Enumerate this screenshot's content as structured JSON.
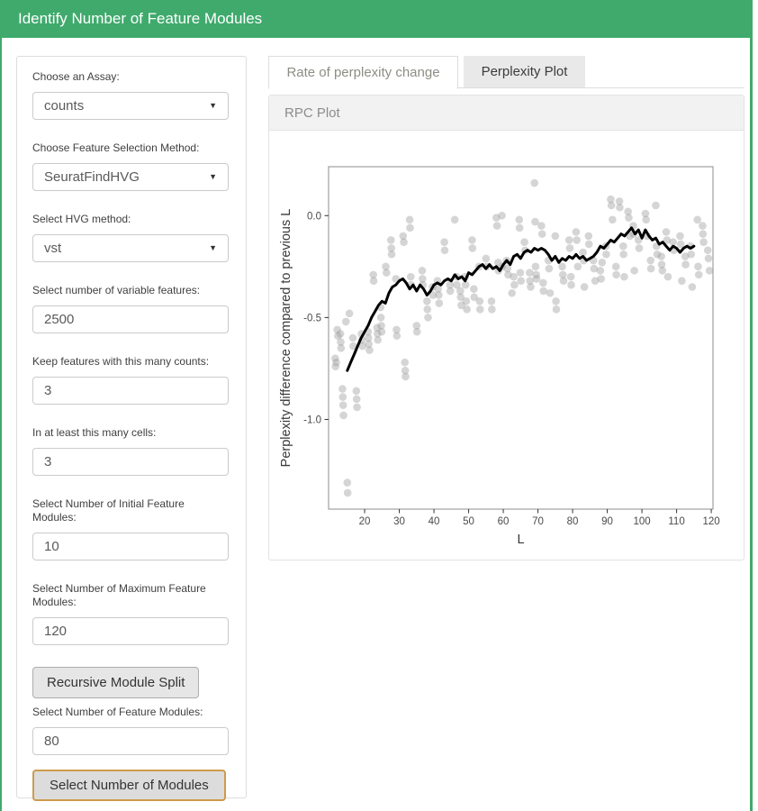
{
  "header": {
    "title": "Identify Number of Feature Modules"
  },
  "colors": {
    "accent_green": "#3faa6c",
    "focused_button_border": "#cd9b4c",
    "inactive_tab_bg": "#e9e9e9",
    "panel_heading_bg": "#f2f2f2",
    "scatter_point": "#9c9c9c",
    "trend_line": "#000000"
  },
  "sidebar": {
    "assay": {
      "label": "Choose an Assay:",
      "value": "counts"
    },
    "feature_selection": {
      "label": "Choose Feature Selection Method:",
      "value": "SeuratFindHVG"
    },
    "hvg_method": {
      "label": "Select HVG method:",
      "value": "vst"
    },
    "n_variable_features": {
      "label": "Select number of variable features:",
      "value": "2500"
    },
    "min_counts": {
      "label": "Keep features with this many counts:",
      "value": "3"
    },
    "min_cells": {
      "label": "In at least this many cells:",
      "value": "3"
    },
    "initial_modules": {
      "label": "Select Number of Initial Feature Modules:",
      "value": "10"
    },
    "max_modules": {
      "label": "Select Number of Maximum Feature Modules:",
      "value": "120"
    },
    "recursive_split_button": "Recursive Module Split",
    "n_feature_modules": {
      "label": "Select Number of Feature Modules:",
      "value": "80"
    },
    "select_modules_button": "Select Number of Modules"
  },
  "tabs": {
    "active": "Rate of perplexity change",
    "inactive": "Perplexity Plot"
  },
  "panel": {
    "title": "RPC Plot"
  },
  "chart_data": {
    "type": "scatter",
    "xlabel": "L",
    "ylabel": "Perplexity difference compared to previous L",
    "xlim": [
      9.6,
      120.5
    ],
    "ylim": [
      -1.44,
      0.24
    ],
    "x_ticks": [
      20,
      30,
      40,
      50,
      60,
      70,
      80,
      90,
      100,
      110,
      120
    ],
    "y_ticks": [
      0.0,
      -0.5,
      -1.0
    ],
    "y_tick_labels": [
      "0.0",
      "-0.5",
      "-1.0"
    ],
    "grid": false,
    "legend": "none",
    "points": [
      [
        11.5,
        -0.7
      ],
      [
        11.6,
        -0.74
      ],
      [
        11.8,
        -0.72
      ],
      [
        12.1,
        -0.56
      ],
      [
        12.3,
        -0.59
      ],
      [
        13.0,
        -0.58
      ],
      [
        13.1,
        -0.62
      ],
      [
        13.2,
        -0.65
      ],
      [
        13.6,
        -0.85
      ],
      [
        13.7,
        -0.89
      ],
      [
        13.8,
        -0.93
      ],
      [
        13.9,
        -0.98
      ],
      [
        15.0,
        -1.31
      ],
      [
        15.1,
        -1.36
      ],
      [
        14.6,
        -0.52
      ],
      [
        15.6,
        -0.48
      ],
      [
        16.6,
        -0.6
      ],
      [
        16.7,
        -0.64
      ],
      [
        17.6,
        -0.86
      ],
      [
        17.7,
        -0.9
      ],
      [
        17.8,
        -0.94
      ],
      [
        19.1,
        -0.58
      ],
      [
        19.2,
        -0.61
      ],
      [
        19.4,
        -0.64
      ],
      [
        21.0,
        -0.57
      ],
      [
        21.1,
        -0.6
      ],
      [
        21.2,
        -0.63
      ],
      [
        21.4,
        -0.66
      ],
      [
        22.5,
        -0.29
      ],
      [
        22.6,
        -0.32
      ],
      [
        23.6,
        -0.55
      ],
      [
        23.7,
        -0.58
      ],
      [
        23.8,
        -0.61
      ],
      [
        24.6,
        -0.45
      ],
      [
        24.7,
        -0.5
      ],
      [
        24.8,
        -0.54
      ],
      [
        24.9,
        -0.57
      ],
      [
        26.1,
        -0.25
      ],
      [
        26.3,
        -0.28
      ],
      [
        27.6,
        -0.12
      ],
      [
        27.7,
        -0.16
      ],
      [
        27.8,
        -0.19
      ],
      [
        29.0,
        -0.31
      ],
      [
        29.2,
        -0.56
      ],
      [
        29.3,
        -0.59
      ],
      [
        31.1,
        -0.1
      ],
      [
        31.3,
        -0.13
      ],
      [
        31.6,
        -0.72
      ],
      [
        31.7,
        -0.76
      ],
      [
        31.8,
        -0.79
      ],
      [
        33.0,
        -0.02
      ],
      [
        33.1,
        -0.06
      ],
      [
        33.3,
        -0.3
      ],
      [
        33.4,
        -0.34
      ],
      [
        35.0,
        -0.54
      ],
      [
        35.1,
        -0.57
      ],
      [
        36.6,
        -0.27
      ],
      [
        36.7,
        -0.31
      ],
      [
        36.8,
        -0.34
      ],
      [
        38.0,
        -0.42
      ],
      [
        38.1,
        -0.46
      ],
      [
        38.3,
        -0.5
      ],
      [
        39.6,
        -0.35
      ],
      [
        39.7,
        -0.39
      ],
      [
        41.0,
        -0.32
      ],
      [
        41.2,
        -0.36
      ],
      [
        41.4,
        -0.39
      ],
      [
        41.5,
        -0.43
      ],
      [
        43.0,
        -0.13
      ],
      [
        43.1,
        -0.17
      ],
      [
        44.6,
        -0.34
      ],
      [
        44.7,
        -0.37
      ],
      [
        46.0,
        -0.02
      ],
      [
        46.5,
        -0.3
      ],
      [
        46.6,
        -0.34
      ],
      [
        47.6,
        -0.37
      ],
      [
        47.7,
        -0.4
      ],
      [
        47.9,
        -0.44
      ],
      [
        49.0,
        -0.3
      ],
      [
        49.1,
        -0.34
      ],
      [
        49.3,
        -0.42
      ],
      [
        49.5,
        -0.46
      ],
      [
        51.0,
        -0.12
      ],
      [
        51.1,
        -0.16
      ],
      [
        51.5,
        -0.36
      ],
      [
        51.6,
        -0.4
      ],
      [
        53.0,
        -0.25
      ],
      [
        53.2,
        -0.42
      ],
      [
        53.3,
        -0.46
      ],
      [
        55.0,
        -0.21
      ],
      [
        55.2,
        -0.25
      ],
      [
        56.6,
        -0.42
      ],
      [
        56.7,
        -0.46
      ],
      [
        58.0,
        -0.01
      ],
      [
        58.2,
        -0.05
      ],
      [
        58.5,
        -0.23
      ],
      [
        58.6,
        -0.27
      ],
      [
        59.6,
        0.0
      ],
      [
        59.7,
        -0.25
      ],
      [
        61.0,
        -0.22
      ],
      [
        61.2,
        -0.26
      ],
      [
        61.4,
        -0.29
      ],
      [
        62.5,
        -0.38
      ],
      [
        63.0,
        -0.3
      ],
      [
        63.2,
        -0.34
      ],
      [
        64.6,
        -0.02
      ],
      [
        64.7,
        -0.06
      ],
      [
        64.9,
        -0.28
      ],
      [
        65.1,
        -0.32
      ],
      [
        66.1,
        -0.13
      ],
      [
        66.3,
        -0.17
      ],
      [
        67.6,
        -0.28
      ],
      [
        67.7,
        -0.32
      ],
      [
        67.9,
        -0.35
      ],
      [
        69.0,
        0.16
      ],
      [
        69.2,
        -0.03
      ],
      [
        69.3,
        -0.25
      ],
      [
        69.5,
        -0.29
      ],
      [
        69.6,
        -0.31
      ],
      [
        71.0,
        -0.05
      ],
      [
        71.2,
        -0.09
      ],
      [
        71.5,
        -0.33
      ],
      [
        71.6,
        -0.37
      ],
      [
        73.0,
        -0.22
      ],
      [
        73.2,
        -0.26
      ],
      [
        73.5,
        -0.38
      ],
      [
        75.0,
        -0.1
      ],
      [
        75.2,
        -0.42
      ],
      [
        75.3,
        -0.46
      ],
      [
        77.0,
        -0.25
      ],
      [
        77.2,
        -0.29
      ],
      [
        77.4,
        -0.32
      ],
      [
        79.0,
        -0.12
      ],
      [
        79.2,
        -0.16
      ],
      [
        79.5,
        -0.3
      ],
      [
        79.6,
        -0.34
      ],
      [
        81.0,
        -0.08
      ],
      [
        81.2,
        -0.12
      ],
      [
        81.5,
        -0.25
      ],
      [
        83.0,
        -0.18
      ],
      [
        83.2,
        -0.22
      ],
      [
        83.4,
        -0.35
      ],
      [
        84.6,
        -0.1
      ],
      [
        84.7,
        -0.14
      ],
      [
        86.0,
        -0.22
      ],
      [
        86.2,
        -0.26
      ],
      [
        86.5,
        -0.32
      ],
      [
        88.0,
        -0.27
      ],
      [
        88.2,
        -0.31
      ],
      [
        88.5,
        -0.23
      ],
      [
        89.6,
        -0.15
      ],
      [
        89.7,
        -0.19
      ],
      [
        91.0,
        0.08
      ],
      [
        91.2,
        0.05
      ],
      [
        91.5,
        -0.02
      ],
      [
        92.5,
        -0.25
      ],
      [
        92.6,
        -0.29
      ],
      [
        93.5,
        0.07
      ],
      [
        93.6,
        0.04
      ],
      [
        94.6,
        -0.15
      ],
      [
        94.7,
        -0.19
      ],
      [
        94.9,
        -0.3
      ],
      [
        96.0,
        0.02
      ],
      [
        96.2,
        -0.01
      ],
      [
        96.5,
        -0.1
      ],
      [
        97.5,
        -0.05
      ],
      [
        97.6,
        -0.09
      ],
      [
        97.8,
        -0.27
      ],
      [
        99.0,
        -0.12
      ],
      [
        99.2,
        -0.16
      ],
      [
        101.0,
        0.01
      ],
      [
        101.2,
        -0.02
      ],
      [
        101.5,
        -0.1
      ],
      [
        102.5,
        -0.22
      ],
      [
        102.6,
        -0.26
      ],
      [
        104.0,
        0.05
      ],
      [
        104.2,
        -0.15
      ],
      [
        104.4,
        -0.19
      ],
      [
        105.6,
        -0.2
      ],
      [
        105.7,
        -0.24
      ],
      [
        105.9,
        -0.27
      ],
      [
        107.0,
        -0.08
      ],
      [
        107.2,
        -0.12
      ],
      [
        107.5,
        -0.3
      ],
      [
        109.0,
        -0.13
      ],
      [
        109.2,
        -0.17
      ],
      [
        111.0,
        -0.1
      ],
      [
        111.2,
        -0.14
      ],
      [
        111.5,
        -0.32
      ],
      [
        112.5,
        -0.2
      ],
      [
        112.6,
        -0.24
      ],
      [
        114.0,
        -0.15
      ],
      [
        114.2,
        -0.19
      ],
      [
        114.5,
        -0.35
      ],
      [
        116.0,
        -0.02
      ],
      [
        116.2,
        -0.25
      ],
      [
        116.4,
        -0.29
      ],
      [
        117.5,
        -0.05
      ],
      [
        117.6,
        -0.09
      ],
      [
        117.8,
        -0.13
      ],
      [
        119.0,
        -0.17
      ],
      [
        119.2,
        -0.21
      ],
      [
        119.5,
        -0.27
      ]
    ],
    "trend_line": [
      [
        15,
        -0.76
      ],
      [
        16,
        -0.72
      ],
      [
        17,
        -0.68
      ],
      [
        18,
        -0.64
      ],
      [
        19,
        -0.6
      ],
      [
        20,
        -0.57
      ],
      [
        21,
        -0.54
      ],
      [
        22,
        -0.5
      ],
      [
        23,
        -0.47
      ],
      [
        24,
        -0.44
      ],
      [
        25,
        -0.42
      ],
      [
        26,
        -0.43
      ],
      [
        27,
        -0.38
      ],
      [
        28,
        -0.35
      ],
      [
        29,
        -0.34
      ],
      [
        30,
        -0.32
      ],
      [
        31,
        -0.31
      ],
      [
        32,
        -0.33
      ],
      [
        33,
        -0.36
      ],
      [
        34,
        -0.34
      ],
      [
        35,
        -0.37
      ],
      [
        36,
        -0.34
      ],
      [
        37,
        -0.36
      ],
      [
        38,
        -0.39
      ],
      [
        39,
        -0.37
      ],
      [
        40,
        -0.34
      ],
      [
        41,
        -0.33
      ],
      [
        42,
        -0.34
      ],
      [
        43,
        -0.32
      ],
      [
        44,
        -0.31
      ],
      [
        45,
        -0.32
      ],
      [
        46,
        -0.29
      ],
      [
        47,
        -0.31
      ],
      [
        48,
        -0.3
      ],
      [
        49,
        -0.32
      ],
      [
        50,
        -0.28
      ],
      [
        51,
        -0.29
      ],
      [
        52,
        -0.27
      ],
      [
        53,
        -0.25
      ],
      [
        54,
        -0.24
      ],
      [
        55,
        -0.26
      ],
      [
        56,
        -0.24
      ],
      [
        57,
        -0.26
      ],
      [
        58,
        -0.25
      ],
      [
        59,
        -0.27
      ],
      [
        60,
        -0.24
      ],
      [
        61,
        -0.22
      ],
      [
        62,
        -0.24
      ],
      [
        63,
        -0.2
      ],
      [
        64,
        -0.19
      ],
      [
        65,
        -0.21
      ],
      [
        66,
        -0.18
      ],
      [
        67,
        -0.17
      ],
      [
        68,
        -0.18
      ],
      [
        69,
        -0.16
      ],
      [
        70,
        -0.17
      ],
      [
        71,
        -0.16
      ],
      [
        72,
        -0.17
      ],
      [
        73,
        -0.19
      ],
      [
        74,
        -0.22
      ],
      [
        75,
        -0.2
      ],
      [
        76,
        -0.23
      ],
      [
        77,
        -0.21
      ],
      [
        78,
        -0.22
      ],
      [
        79,
        -0.2
      ],
      [
        80,
        -0.21
      ],
      [
        81,
        -0.19
      ],
      [
        82,
        -0.21
      ],
      [
        83,
        -0.2
      ],
      [
        84,
        -0.22
      ],
      [
        85,
        -0.21
      ],
      [
        86,
        -0.2
      ],
      [
        87,
        -0.18
      ],
      [
        88,
        -0.15
      ],
      [
        89,
        -0.16
      ],
      [
        90,
        -0.14
      ],
      [
        91,
        -0.12
      ],
      [
        92,
        -0.13
      ],
      [
        93,
        -0.11
      ],
      [
        94,
        -0.09
      ],
      [
        95,
        -0.1
      ],
      [
        96,
        -0.08
      ],
      [
        97,
        -0.06
      ],
      [
        98,
        -0.09
      ],
      [
        99,
        -0.07
      ],
      [
        100,
        -0.11
      ],
      [
        101,
        -0.07
      ],
      [
        102,
        -0.1
      ],
      [
        103,
        -0.12
      ],
      [
        104,
        -0.11
      ],
      [
        105,
        -0.14
      ],
      [
        106,
        -0.13
      ],
      [
        107,
        -0.15
      ],
      [
        108,
        -0.17
      ],
      [
        109,
        -0.15
      ],
      [
        110,
        -0.16
      ],
      [
        111,
        -0.18
      ],
      [
        112,
        -0.16
      ],
      [
        113,
        -0.15
      ],
      [
        114,
        -0.16
      ],
      [
        115,
        -0.15
      ]
    ]
  }
}
